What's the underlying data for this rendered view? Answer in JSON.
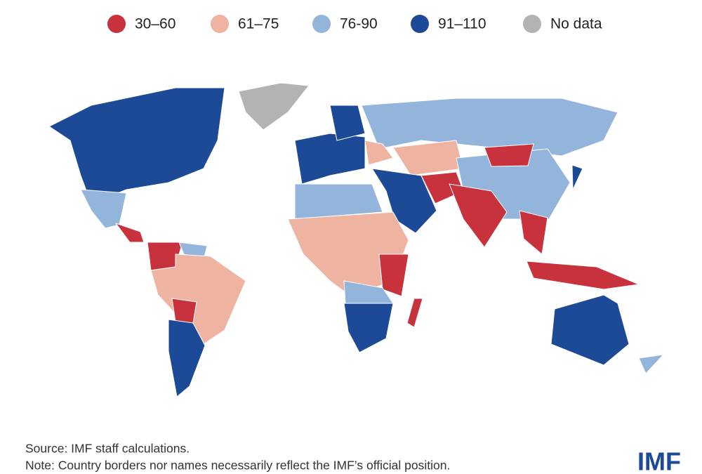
{
  "legend": [
    {
      "label": "30–60",
      "color": "#c8323c"
    },
    {
      "label": "61–75",
      "color": "#efb3a2"
    },
    {
      "label": "76-90",
      "color": "#93b5dc"
    },
    {
      "label": "91–110",
      "color": "#1d4a96"
    },
    {
      "label": "No data",
      "color": "#b3b3b3"
    }
  ],
  "source": "Source: IMF staff calculations.",
  "note": "Note: Country borders nor names necessarily reflect the IMF’s official position.",
  "logo": "IMF"
}
